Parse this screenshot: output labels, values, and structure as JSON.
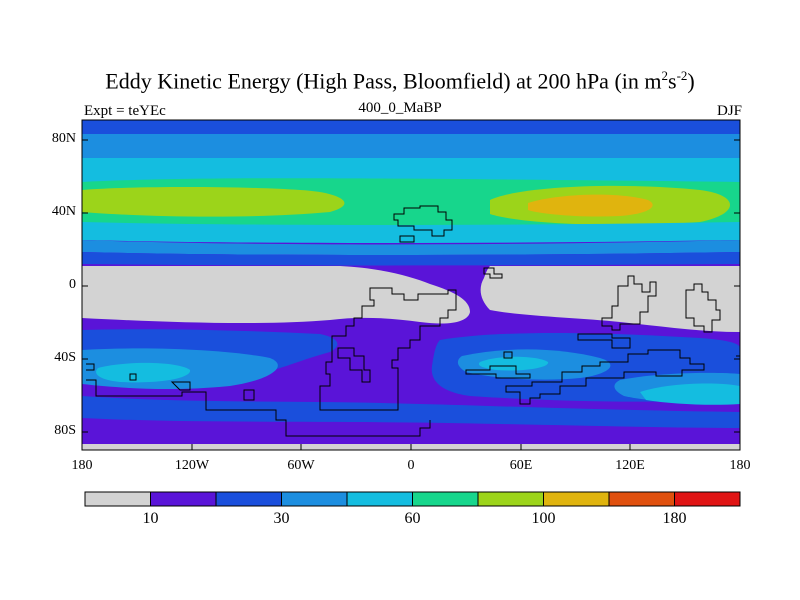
{
  "title": {
    "main": "Eddy Kinetic Energy (High Pass, Bloomfield) at 200 hPa (in m",
    "sup1": "2",
    "mid": "s",
    "sup2": "-2",
    "close": ")"
  },
  "subtitle": "400_0_MaBP",
  "left_label": "Expt = teYEc",
  "right_label": "DJF",
  "map": {
    "x_ticks": [
      "180",
      "120W",
      "60W",
      "0",
      "60E",
      "120E",
      "180"
    ],
    "y_ticks": [
      "80N",
      "40N",
      "0",
      "40S",
      "80S"
    ],
    "lon_range": [
      -180,
      180
    ],
    "lat_range": [
      -90,
      90
    ]
  },
  "colorbar": {
    "levels": [
      "",
      "",
      "",
      "",
      "",
      "",
      "",
      "",
      "",
      ""
    ],
    "colors": [
      "#d3d3d3",
      "#5a14d8",
      "#1a4fdc",
      "#1c8ee0",
      "#14bde0",
      "#17d68c",
      "#9cd41a",
      "#e0b40e",
      "#e0500e",
      "#e01414"
    ],
    "tick_labels": [
      "10",
      "30",
      "60",
      "100",
      "180"
    ]
  }
}
